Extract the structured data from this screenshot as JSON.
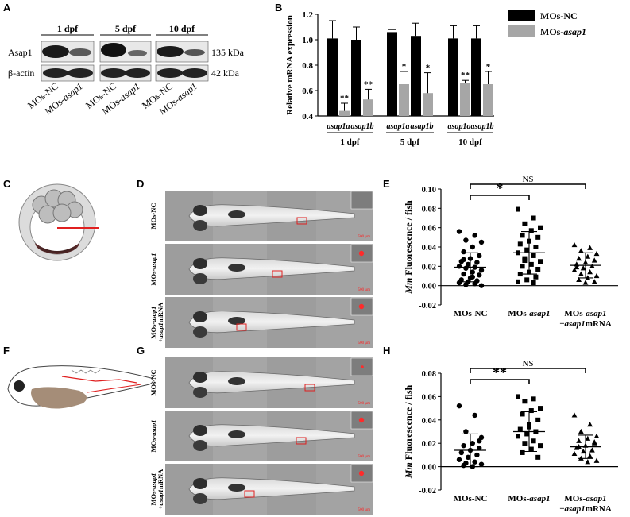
{
  "panels": {
    "A": "A",
    "B": "B",
    "C": "C",
    "D": "D",
    "E": "E",
    "F": "F",
    "G": "G",
    "H": "H"
  },
  "western_blot": {
    "timepoints": [
      "1 dpf",
      "5 dpf",
      "10 dpf"
    ],
    "rows": [
      {
        "label": "Asap1",
        "size": "135 kDa"
      },
      {
        "label": "β-actin",
        "size": "42 kDa"
      }
    ],
    "lanes": [
      {
        "prefix": "MOs-",
        "suffix": "NC"
      },
      {
        "prefix": "MOs-",
        "suffix": "asap1"
      },
      {
        "prefix": "MOs-",
        "suffix": "NC"
      },
      {
        "prefix": "MOs-",
        "suffix": "asap1"
      },
      {
        "prefix": "MOs-",
        "suffix": "NC"
      },
      {
        "prefix": "MOs-",
        "suffix": "asap1"
      }
    ]
  },
  "microscopy": {
    "D": [
      {
        "line1": "MOs-NC",
        "line2": ""
      },
      {
        "line1": "MOs-asap1",
        "line2": ""
      },
      {
        "line1": "MOs-asap1",
        "line2": "+asap1mRNA"
      }
    ],
    "G": [
      {
        "line1": "MOs-NC",
        "line2": ""
      },
      {
        "line1": "MOs-asap1",
        "line2": ""
      },
      {
        "line1": "MOs-asap1",
        "line2": "+asap1mRNA"
      }
    ],
    "scalebar": "500 μm"
  },
  "chart_data": [
    {
      "panel": "B",
      "type": "bar",
      "ylabel": "Relative mRNA expression",
      "ylim": [
        0.4,
        1.2
      ],
      "yticks": [
        0.4,
        0.6,
        0.8,
        1.0,
        1.2
      ],
      "ytick_labels": [
        "0.4",
        "0.6",
        "0.8",
        "1.0",
        "1.2"
      ],
      "groups": [
        {
          "gene": "asap1a",
          "timepoint": "1 dpf",
          "nc": 1.01,
          "nc_err": 0.14,
          "kd": 0.44,
          "kd_err": 0.06,
          "sig": "**"
        },
        {
          "gene": "asap1b",
          "timepoint": "1 dpf",
          "nc": 1.0,
          "nc_err": 0.1,
          "kd": 0.53,
          "kd_err": 0.08,
          "sig": "**"
        },
        {
          "gene": "asap1a",
          "timepoint": "5 dpf",
          "nc": 1.06,
          "nc_err": 0.02,
          "kd": 0.65,
          "kd_err": 0.1,
          "sig": "*"
        },
        {
          "gene": "asap1b",
          "timepoint": "5 dpf",
          "nc": 1.03,
          "nc_err": 0.1,
          "kd": 0.58,
          "kd_err": 0.16,
          "sig": "*"
        },
        {
          "gene": "asap1a",
          "timepoint": "10 dpf",
          "nc": 1.01,
          "nc_err": 0.1,
          "kd": 0.66,
          "kd_err": 0.02,
          "sig": "**"
        },
        {
          "gene": "asap1b",
          "timepoint": "10 dpf",
          "nc": 1.01,
          "nc_err": 0.1,
          "kd": 0.65,
          "kd_err": 0.1,
          "sig": "*"
        }
      ],
      "timepoints": [
        "1 dpf",
        "5 dpf",
        "10 dpf"
      ],
      "legend": [
        {
          "prefix": "MOs-",
          "suffix": "NC",
          "italic": false,
          "color": "#000000"
        },
        {
          "prefix": "MOs-",
          "suffix": "asap1",
          "italic": true,
          "color": "#a6a6a6"
        }
      ],
      "legend_position": "right"
    },
    {
      "panel": "E",
      "type": "scatter",
      "ylabel_italic": "Mm",
      "ylabel_rest": " Fluorescence / fish",
      "ylim": [
        -0.02,
        0.1
      ],
      "yticks": [
        -0.02,
        0.0,
        0.02,
        0.04,
        0.06,
        0.08,
        0.1
      ],
      "ytick_labels": [
        "-0.02",
        "0.00",
        "0.02",
        "0.04",
        "0.06",
        "0.08",
        "0.10"
      ],
      "categories": [
        {
          "line1_prefix": "MOs-",
          "line1_suffix": "NC",
          "line2_italic": "",
          "line2_rest": ""
        },
        {
          "line1_prefix": "MOs-",
          "line1_suffix": "asap1",
          "line2_italic": "",
          "line2_rest": ""
        },
        {
          "line1_prefix": "MOs-",
          "line1_suffix": "asap1",
          "line2_italic": "+asap1",
          "line2_rest": "mRNA"
        }
      ],
      "markers": [
        "circle",
        "square",
        "triangle"
      ],
      "series": [
        {
          "mean": 0.019,
          "sd": 0.015,
          "values": [
            0.056,
            0.052,
            0.047,
            0.045,
            0.04,
            0.035,
            0.031,
            0.028,
            0.025,
            0.024,
            0.022,
            0.02,
            0.019,
            0.018,
            0.016,
            0.014,
            0.012,
            0.011,
            0.008,
            0.006,
            0.005,
            0.004,
            0.003,
            0.002,
            0.001,
            0.0,
            0.009,
            0.027
          ]
        },
        {
          "mean": 0.034,
          "sd": 0.022,
          "values": [
            0.079,
            0.07,
            0.064,
            0.06,
            0.057,
            0.052,
            0.05,
            0.046,
            0.043,
            0.04,
            0.037,
            0.034,
            0.031,
            0.028,
            0.025,
            0.022,
            0.02,
            0.017,
            0.014,
            0.012,
            0.009,
            0.006,
            0.004,
            0.003,
            0.026
          ]
        },
        {
          "mean": 0.021,
          "sd": 0.013,
          "values": [
            0.042,
            0.039,
            0.036,
            0.033,
            0.03,
            0.028,
            0.026,
            0.024,
            0.022,
            0.02,
            0.018,
            0.016,
            0.014,
            0.012,
            0.01,
            0.008,
            0.006,
            0.004,
            0.003,
            0.019
          ]
        }
      ],
      "comparisons": [
        {
          "from": 0,
          "to": 1,
          "label": "*"
        },
        {
          "from": 0,
          "to": 2,
          "label": "NS"
        }
      ]
    },
    {
      "panel": "H",
      "type": "scatter",
      "ylabel_italic": "Mm",
      "ylabel_rest": " Fluorescence / fish",
      "ylim": [
        -0.02,
        0.08
      ],
      "yticks": [
        -0.02,
        0.0,
        0.02,
        0.04,
        0.06,
        0.08
      ],
      "ytick_labels": [
        "-0.02",
        "0.00",
        "0.02",
        "0.04",
        "0.06",
        "0.08"
      ],
      "categories": [
        {
          "line1_prefix": "MOs-",
          "line1_suffix": "NC",
          "line2_italic": "",
          "line2_rest": ""
        },
        {
          "line1_prefix": "MOs-",
          "line1_suffix": "asap1",
          "line2_italic": "",
          "line2_rest": ""
        },
        {
          "line1_prefix": "MOs-",
          "line1_suffix": "asap1",
          "line2_italic": "+asap1",
          "line2_rest": "mRNA"
        }
      ],
      "markers": [
        "circle",
        "square",
        "triangle"
      ],
      "series": [
        {
          "mean": 0.014,
          "sd": 0.014,
          "values": [
            0.052,
            0.044,
            0.03,
            0.025,
            0.02,
            0.018,
            0.016,
            0.014,
            0.012,
            0.01,
            0.008,
            0.006,
            0.004,
            0.003,
            0.002,
            0.0,
            0.001,
            0.022
          ]
        },
        {
          "mean": 0.03,
          "sd": 0.017,
          "values": [
            0.06,
            0.058,
            0.056,
            0.05,
            0.048,
            0.045,
            0.04,
            0.036,
            0.032,
            0.03,
            0.028,
            0.026,
            0.022,
            0.02,
            0.018,
            0.015,
            0.012,
            0.008,
            0.034
          ]
        },
        {
          "mean": 0.017,
          "sd": 0.01,
          "values": [
            0.044,
            0.036,
            0.03,
            0.026,
            0.024,
            0.022,
            0.02,
            0.018,
            0.016,
            0.014,
            0.013,
            0.011,
            0.009,
            0.007,
            0.005,
            0.004,
            0.017,
            0.021
          ]
        }
      ],
      "comparisons": [
        {
          "from": 0,
          "to": 1,
          "label": "**"
        },
        {
          "from": 0,
          "to": 2,
          "label": "NS"
        }
      ]
    }
  ]
}
